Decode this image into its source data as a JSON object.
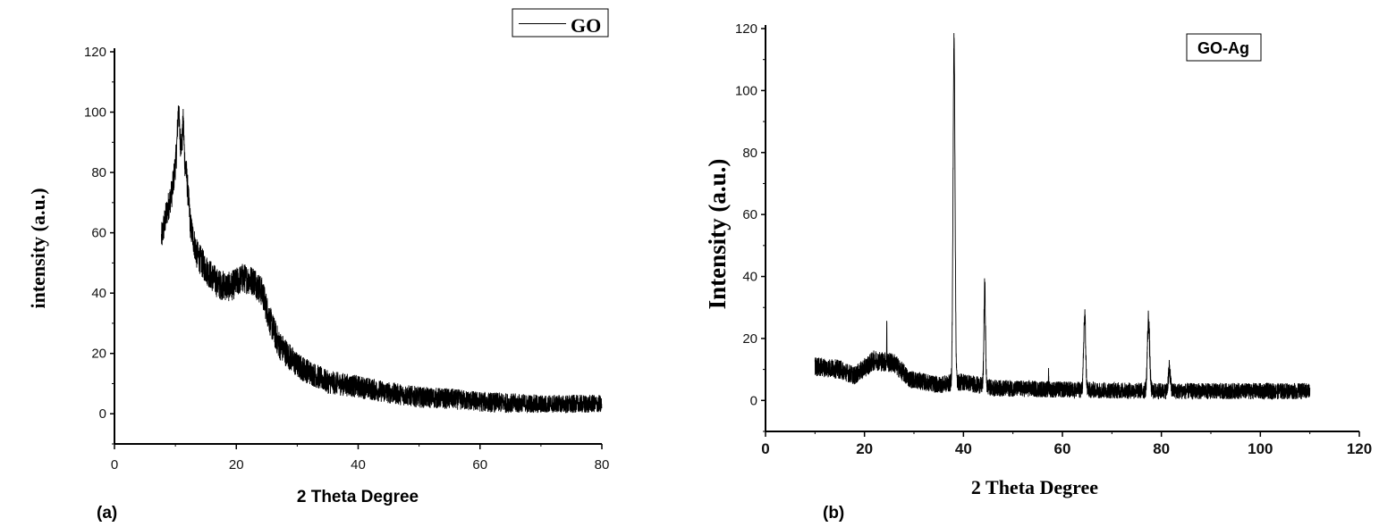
{
  "chart_data": [
    {
      "type": "line",
      "panel_label": "(a)",
      "xlabel": "2 Theta Degree",
      "ylabel": "intensity (a.u.)",
      "xlim": [
        0,
        80
      ],
      "ylim": [
        -10,
        120
      ],
      "xticks": [
        0,
        20,
        40,
        60,
        80
      ],
      "yticks": [
        0,
        20,
        40,
        60,
        80,
        100,
        120
      ],
      "grid": false,
      "legend": {
        "position": "top-right",
        "entries": [
          "GO"
        ]
      },
      "series": [
        {
          "name": "GO",
          "noise": 5,
          "x_range": [
            7.7,
            80
          ],
          "envelope": [
            [
              7.7,
              58
            ],
            [
              8.5,
              66
            ],
            [
              9.5,
              74
            ],
            [
              10.3,
              88
            ],
            [
              11,
              90
            ],
            [
              11.8,
              80
            ],
            [
              12.5,
              62
            ],
            [
              13.5,
              53
            ],
            [
              15,
              48
            ],
            [
              17,
              43
            ],
            [
              19,
              42
            ],
            [
              21,
              45
            ],
            [
              23,
              44
            ],
            [
              24.3,
              40
            ],
            [
              25.5,
              31
            ],
            [
              27,
              23
            ],
            [
              30,
              16
            ],
            [
              35,
              10.5
            ],
            [
              40,
              9
            ],
            [
              45,
              7
            ],
            [
              50,
              5.5
            ],
            [
              55,
              5
            ],
            [
              60,
              4
            ],
            [
              70,
              3
            ],
            [
              80,
              3
            ]
          ],
          "peaks": [
            [
              10.5,
              12,
              0.2
            ],
            [
              11.3,
              10,
              0.15
            ]
          ]
        }
      ]
    },
    {
      "type": "line",
      "panel_label": "(b)",
      "xlabel": "2 Theta Degree",
      "ylabel": "Intensity (a.u.)",
      "xlim": [
        0,
        120
      ],
      "ylim": [
        -10,
        120
      ],
      "xticks": [
        0,
        20,
        40,
        60,
        80,
        100,
        120
      ],
      "yticks": [
        0,
        20,
        40,
        60,
        80,
        100,
        120
      ],
      "grid": false,
      "legend": {
        "position": "top-right",
        "entries": [
          "GO-Ag"
        ]
      },
      "series": [
        {
          "name": "GO-Ag",
          "noise": 4,
          "x_range": [
            10,
            110
          ],
          "envelope": [
            [
              10,
              11
            ],
            [
              15,
              10
            ],
            [
              18,
              8
            ],
            [
              22,
              13
            ],
            [
              26,
              12
            ],
            [
              29,
              7
            ],
            [
              35,
              5
            ],
            [
              37,
              5.5
            ],
            [
              40,
              6
            ],
            [
              43,
              5
            ],
            [
              46,
              4
            ],
            [
              60,
              3.5
            ],
            [
              80,
              3
            ],
            [
              110,
              3
            ]
          ],
          "peaks": [
            [
              38.1,
              110,
              0.28
            ],
            [
              44.3,
              32,
              0.22
            ],
            [
              64.5,
              24,
              0.28
            ],
            [
              77.4,
              23,
              0.32
            ],
            [
              81.6,
              7,
              0.3
            ],
            [
              24.5,
              15,
              0.04
            ],
            [
              57.2,
              7,
              0.04
            ]
          ]
        }
      ]
    }
  ]
}
